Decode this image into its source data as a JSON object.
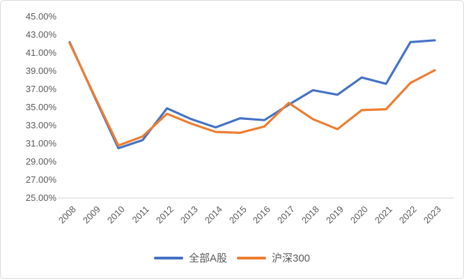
{
  "chart_data": {
    "type": "line",
    "title": "",
    "categories": [
      "2008",
      "2009",
      "2010",
      "2011",
      "2012",
      "2013",
      "2014",
      "2015",
      "2016",
      "2017",
      "2018",
      "2019",
      "2020",
      "2021",
      "2022",
      "2023"
    ],
    "series": [
      {
        "name": "全部A股",
        "color": "#4472C4",
        "values": [
          42.2,
          36.3,
          30.5,
          31.4,
          34.9,
          33.7,
          32.8,
          33.8,
          33.6,
          35.3,
          36.9,
          36.4,
          38.3,
          37.6,
          42.2,
          42.4
        ]
      },
      {
        "name": "沪深300",
        "color": "#ED7D31",
        "values": [
          42.1,
          36.4,
          30.8,
          31.8,
          34.3,
          33.2,
          32.3,
          32.2,
          32.9,
          35.5,
          33.7,
          32.6,
          34.7,
          34.8,
          37.7,
          39.1
        ]
      }
    ],
    "y_axis": {
      "min": 25,
      "max": 45,
      "step": 2,
      "unit": "%",
      "tick_labels": [
        "45.00%",
        "43.00%",
        "41.00%",
        "39.00%",
        "37.00%",
        "35.00%",
        "33.00%",
        "31.00%",
        "29.00%",
        "27.00%",
        "25.00%"
      ]
    },
    "x_axis": {
      "label": ""
    },
    "grid": false,
    "legend_position": "bottom"
  },
  "colors": {
    "background": "#FFFFFF",
    "border": "#D9D9D9",
    "axis_line": "#D9D9D9",
    "tick_text": "#595959",
    "series_blue": "#4472C4",
    "series_orange": "#ED7D31"
  }
}
